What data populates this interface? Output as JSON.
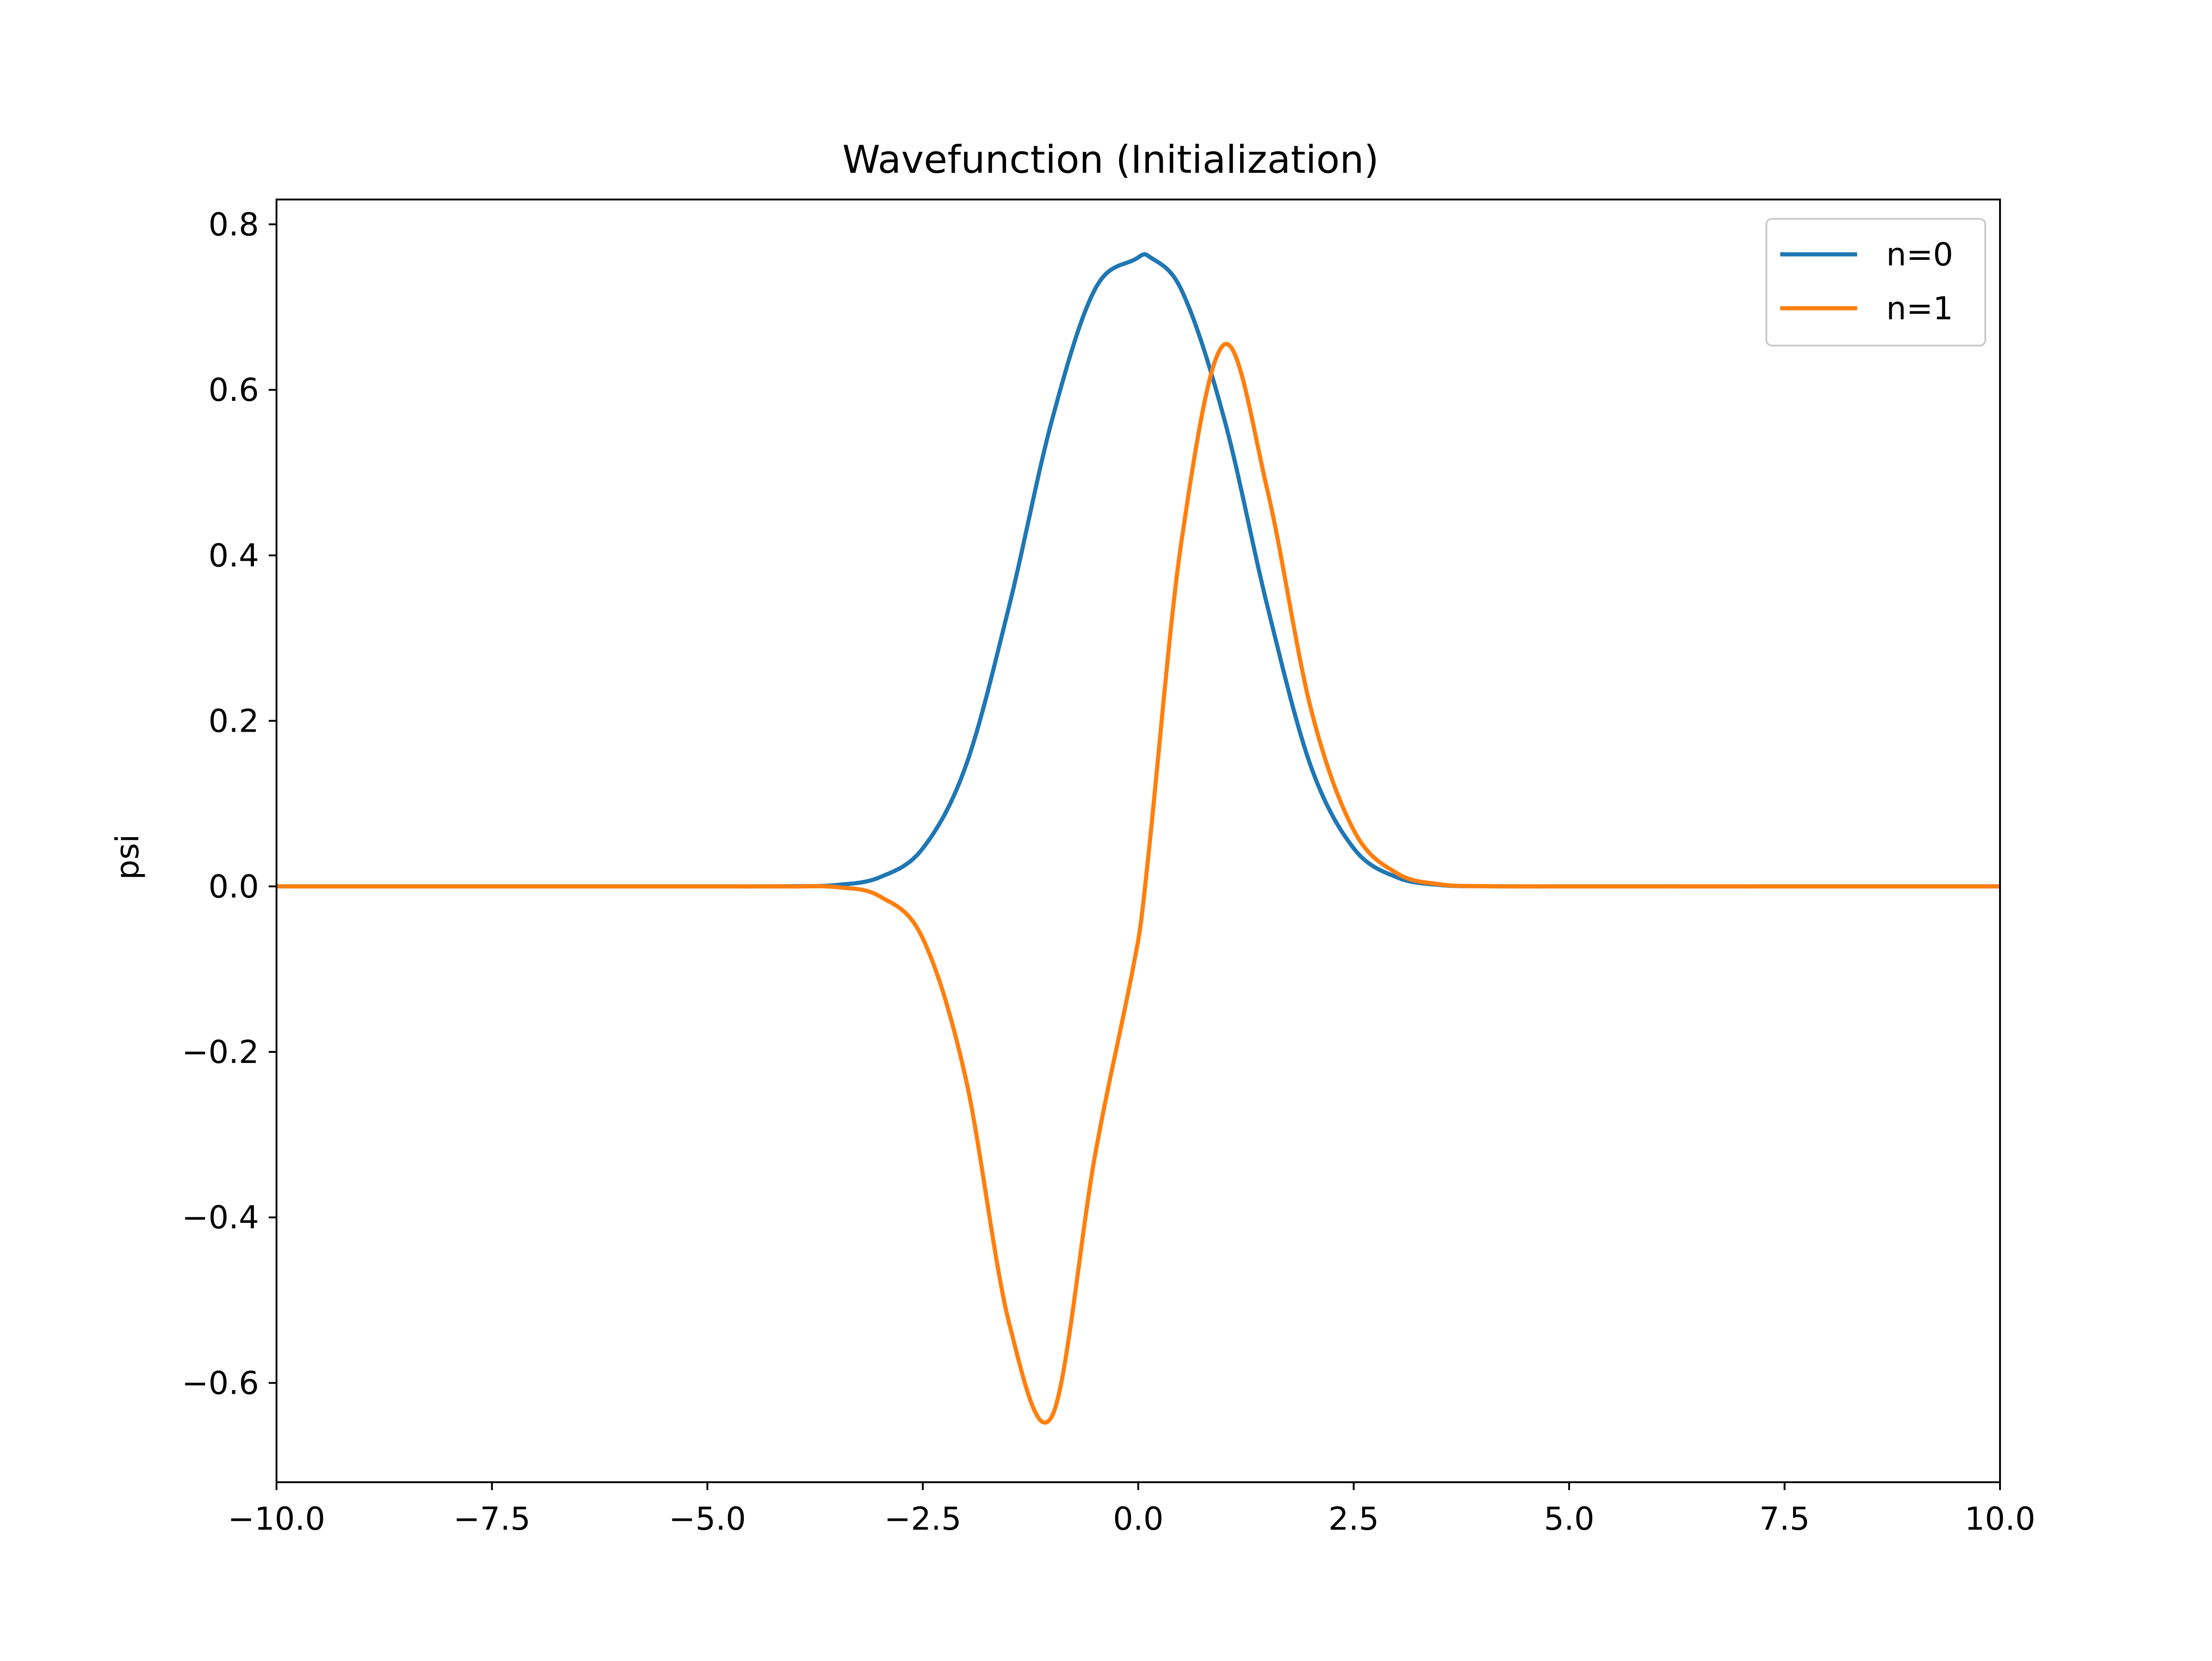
{
  "chart_data": {
    "type": "line",
    "title": "Wavefunction (Initialization)",
    "xlabel": "",
    "ylabel": "psi",
    "xlim": [
      -10.0,
      10.0
    ],
    "ylim": [
      -0.72,
      0.83
    ],
    "x_ticks": [
      "−10.0",
      "−7.5",
      "−5.0",
      "−2.5",
      "0.0",
      "2.5",
      "5.0",
      "7.5",
      "10.0"
    ],
    "x_tick_values": [
      -10.0,
      -7.5,
      -5.0,
      -2.5,
      0.0,
      2.5,
      5.0,
      7.5,
      10.0
    ],
    "y_ticks": [
      "0.8",
      "0.6",
      "0.4",
      "0.2",
      "0.0",
      "−0.2",
      "−0.4",
      "−0.6"
    ],
    "y_tick_values": [
      0.8,
      0.6,
      0.4,
      0.2,
      0.0,
      -0.2,
      -0.4,
      -0.6
    ],
    "grid": false,
    "legend_position": "top-right",
    "x": [
      -10,
      -5,
      -4,
      -3.5,
      -3,
      -2.5,
      -2,
      -1.5,
      -1,
      -0.5,
      0,
      0.1,
      0.5,
      1,
      1.5,
      2,
      2.5,
      3,
      3.5,
      4,
      5,
      10
    ],
    "series": [
      {
        "name": "n=0",
        "color": "#1f77b4",
        "values": [
          0,
          0,
          0.0002,
          0.0017,
          0.011,
          0.046,
          0.146,
          0.338,
          0.564,
          0.722,
          0.76,
          0.763,
          0.721,
          0.564,
          0.338,
          0.146,
          0.046,
          0.011,
          0.0017,
          0.0002,
          0,
          0
        ]
      },
      {
        "name": "n=1",
        "color": "#ff7f0e",
        "values": [
          0,
          0,
          -0.0001,
          -0.0009,
          -0.012,
          -0.063,
          -0.233,
          -0.527,
          -0.64,
          -0.324,
          -0.065,
          0.02,
          0.416,
          0.655,
          0.478,
          0.216,
          0.068,
          0.016,
          0.0025,
          0.0003,
          0,
          0
        ]
      }
    ]
  }
}
